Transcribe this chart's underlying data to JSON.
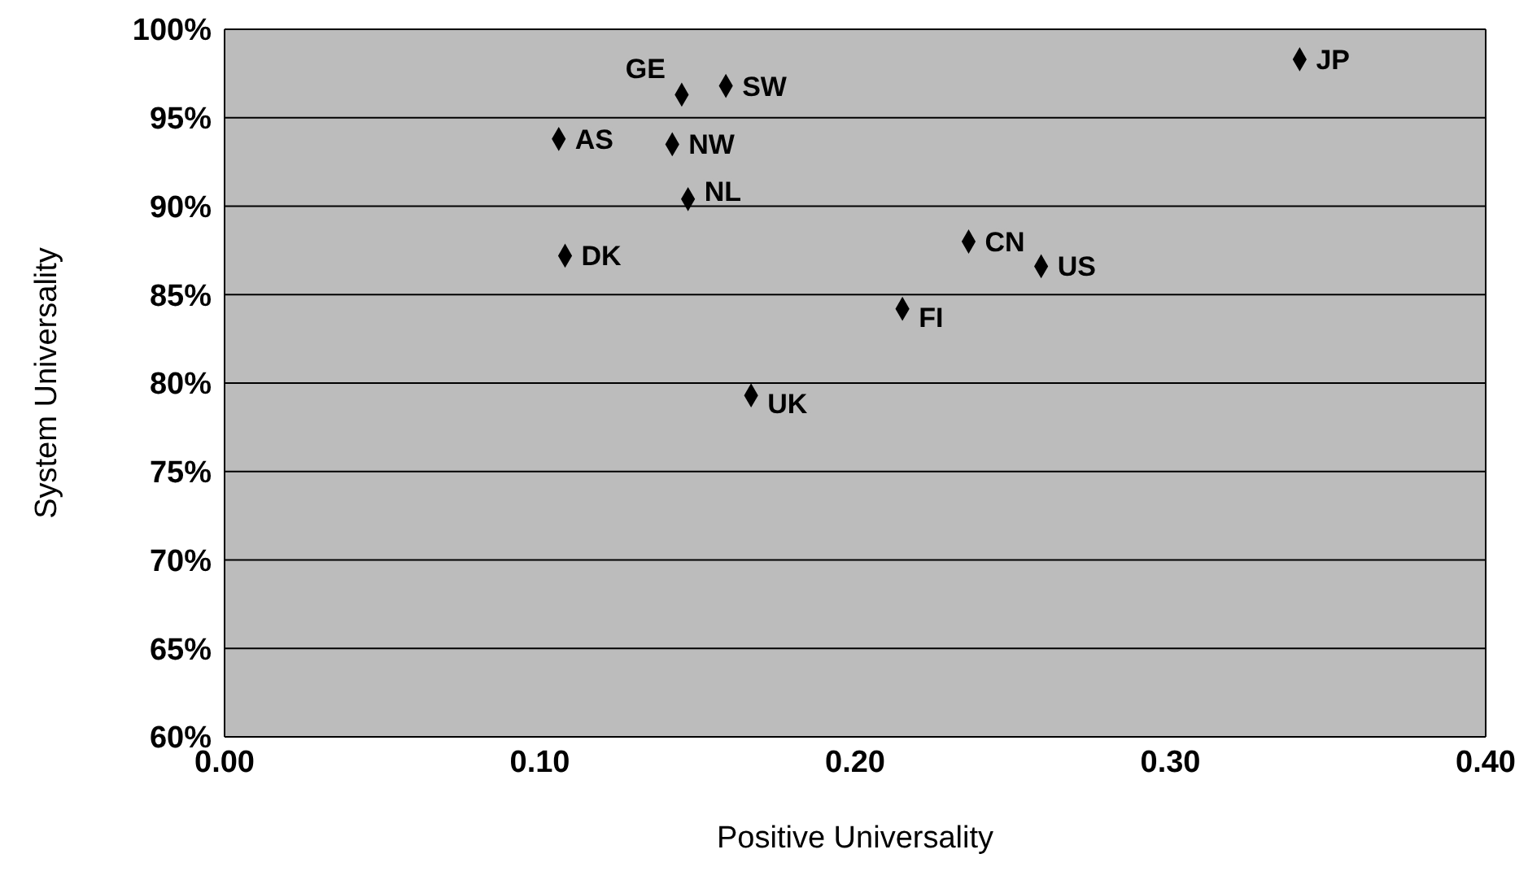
{
  "chart_data": {
    "type": "scatter",
    "xlabel": "Positive Universality",
    "ylabel": "System Universality",
    "xlim": [
      0,
      0.4
    ],
    "xticks": [
      {
        "value": 0,
        "label": "0.00"
      },
      {
        "value": 0.1,
        "label": "0.10"
      },
      {
        "value": 0.2,
        "label": "0.20"
      },
      {
        "value": 0.3,
        "label": "0.30"
      },
      {
        "value": 0.4,
        "label": "0.40"
      }
    ],
    "ylim": [
      60,
      100
    ],
    "yticks": [
      {
        "value": 60,
        "label": "60%"
      },
      {
        "value": 65,
        "label": "65%"
      },
      {
        "value": 70,
        "label": "70%"
      },
      {
        "value": 75,
        "label": "75%"
      },
      {
        "value": 80,
        "label": "80%"
      },
      {
        "value": 85,
        "label": "85%"
      },
      {
        "value": 90,
        "label": "90%"
      },
      {
        "value": 95,
        "label": "95%"
      },
      {
        "value": 100,
        "label": "100%"
      }
    ],
    "grid": "y",
    "legend": false,
    "marker": "diamond",
    "series": [
      {
        "name": "JP",
        "color": "#000000",
        "x": [
          0.341
        ],
        "values": [
          98.3
        ]
      },
      {
        "name": "GE",
        "color": "#000000",
        "x": [
          0.145
        ],
        "values": [
          96.3
        ]
      },
      {
        "name": "SW",
        "color": "#000000",
        "x": [
          0.159
        ],
        "values": [
          96.8
        ]
      },
      {
        "name": "AS",
        "color": "#000000",
        "x": [
          0.106
        ],
        "values": [
          93.8
        ]
      },
      {
        "name": "NW",
        "color": "#000000",
        "x": [
          0.142
        ],
        "values": [
          93.5
        ]
      },
      {
        "name": "NL",
        "color": "#000000",
        "x": [
          0.147
        ],
        "values": [
          90.4
        ]
      },
      {
        "name": "DK",
        "color": "#000000",
        "x": [
          0.108
        ],
        "values": [
          87.2
        ]
      },
      {
        "name": "CN",
        "color": "#000000",
        "x": [
          0.236
        ],
        "values": [
          88.0
        ]
      },
      {
        "name": "US",
        "color": "#000000",
        "x": [
          0.259
        ],
        "values": [
          86.6
        ]
      },
      {
        "name": "FI",
        "color": "#000000",
        "x": [
          0.215
        ],
        "values": [
          84.2
        ]
      },
      {
        "name": "UK",
        "color": "#000000",
        "x": [
          0.167
        ],
        "values": [
          79.3
        ]
      }
    ]
  }
}
